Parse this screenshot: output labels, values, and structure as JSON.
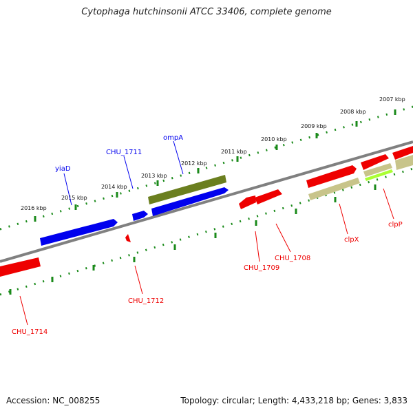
{
  "title": "Cytophaga hutchinsonii ATCC 33406, complete genome",
  "footer": {
    "accession": "Accession: NC_008255",
    "summary": "Topology: circular; Length: 4,433,218 bp; Genes: 3,833"
  },
  "ruler_labels": [
    "2016 kbp",
    "2015 kbp",
    "2014 kbp",
    "2013 kbp",
    "2012 kbp",
    "2011 kbp",
    "2010 kbp",
    "2009 kbp",
    "2008 kbp",
    "2007 kbp"
  ],
  "gene_labels": [
    "yiaD",
    "CHU_1711",
    "ompA",
    "CHU_1709",
    "CHU_1708",
    "clpX",
    "clpP",
    "CHU_1712",
    "CHU_1714"
  ],
  "colors": {
    "blue": "#0000ee",
    "red": "#ee0000",
    "olive": "#6b8e23",
    "khaki": "#c8c48a",
    "lime": "#aaff33",
    "backbone": "#808080",
    "ticks": "#1a8a1a"
  }
}
